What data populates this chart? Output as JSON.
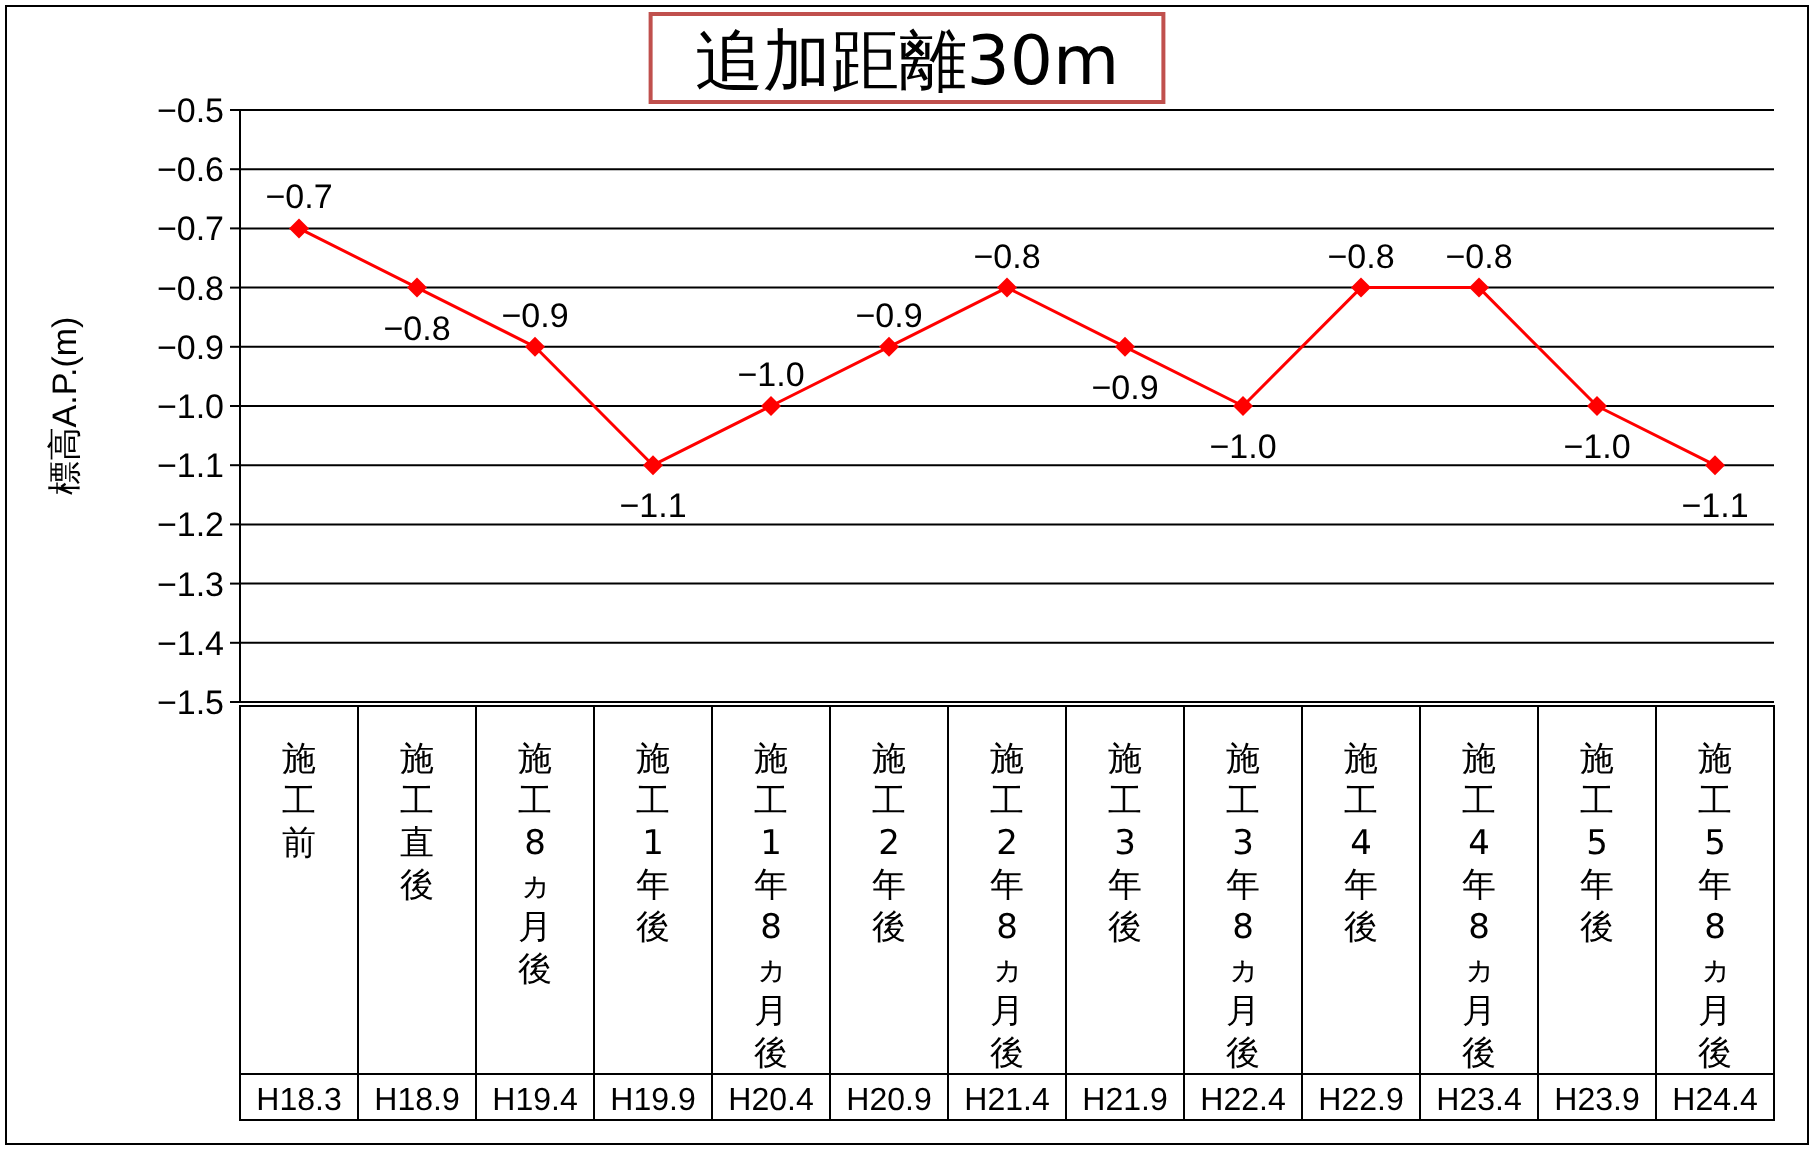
{
  "chart_data": {
    "type": "line",
    "title": "追加距離30m",
    "ylabel": "標高A.P.(m)",
    "categories": [
      "施工前",
      "施工直後",
      "施工8ヵ月後",
      "施工1年後",
      "施工1年8ヵ月後",
      "施工2年後",
      "施工2年8ヵ月後",
      "施工3年後",
      "施工3年8ヵ月後",
      "施工4年後",
      "施工4年8ヵ月後",
      "施工5年後",
      "施工5年8ヵ月後"
    ],
    "annotations": [
      "H18.3",
      "H18.9",
      "H19.4",
      "H19.9",
      "H20.4",
      "H20.9",
      "H21.4",
      "H21.9",
      "H22.4",
      "H22.9",
      "H23.4",
      "H23.9",
      "H24.4"
    ],
    "series": [
      {
        "color": "#ff0000",
        "values": [
          -0.7,
          -0.8,
          -0.9,
          -1.1,
          -1.0,
          -0.9,
          -0.8,
          -0.9,
          -1.0,
          -0.8,
          -0.8,
          -1.0,
          -1.1
        ],
        "value_labels": [
          "−0.7",
          "−0.8",
          "−0.9",
          "−1.1",
          "−1.0",
          "−0.9",
          "−0.8",
          "−0.9",
          "−1.0",
          "−0.8",
          "−0.8",
          "−1.0",
          "−1.1"
        ]
      }
    ],
    "ylim": [
      -1.5,
      -0.5
    ],
    "yticks": [
      {
        "value": -1.5,
        "label": "−1.5"
      },
      {
        "value": -1.4,
        "label": "−1.4"
      },
      {
        "value": -1.3,
        "label": "−1.3"
      },
      {
        "value": -1.2,
        "label": "−1.2"
      },
      {
        "value": -1.1,
        "label": "−1.1"
      },
      {
        "value": -1.0,
        "label": "−1.0"
      },
      {
        "value": -0.9,
        "label": "−0.9"
      },
      {
        "value": -0.8,
        "label": "−0.8"
      },
      {
        "value": -0.7,
        "label": "−0.7"
      },
      {
        "value": -0.6,
        "label": "−0.6"
      },
      {
        "value": -0.5,
        "label": "−0.5"
      }
    ],
    "grid": "y",
    "marker": "diamond",
    "line_style": "solid",
    "legend": false,
    "data_labels": true
  }
}
